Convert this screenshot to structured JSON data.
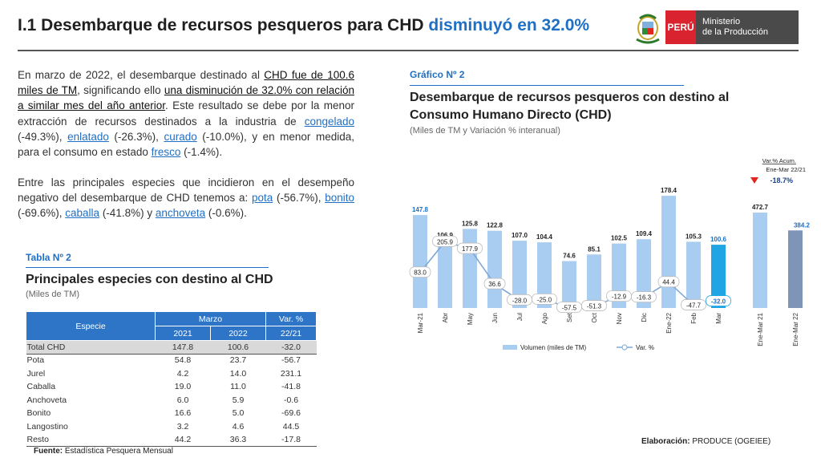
{
  "header": {
    "title_main": "I.1 Desembarque de recursos pesqueros para CHD",
    "title_highlight": "disminuyó en 32.0%",
    "logo_country": "PERÚ",
    "logo_ministry_line1": "Ministerio",
    "logo_ministry_line2": "de la Producción"
  },
  "text": {
    "p1": [
      {
        "t": "En marzo de 2022, el desembarque destinado al ",
        "s": ""
      },
      {
        "t": "CHD fue de 100.6 miles de TM",
        "s": "u"
      },
      {
        "t": ", significando ello ",
        "s": ""
      },
      {
        "t": "una disminución de 32.0% con relación a similar mes del año anterior",
        "s": "u"
      },
      {
        "t": ". Este resultado se debe por la menor extracción de recursos destinados a la industria de ",
        "s": ""
      },
      {
        "t": "congelado",
        "s": "blue"
      },
      {
        "t": " (-49.3%), ",
        "s": ""
      },
      {
        "t": "enlatado",
        "s": "blue"
      },
      {
        "t": " (-26.3%), ",
        "s": ""
      },
      {
        "t": "curado",
        "s": "blue"
      },
      {
        "t": " (-10.0%), y en menor medida, para el consumo en estado ",
        "s": ""
      },
      {
        "t": "fresco",
        "s": "blue"
      },
      {
        "t": " (-1.4%).",
        "s": ""
      }
    ],
    "p2": [
      {
        "t": "Entre las principales especies que incidieron en el desempeño negativo del desembarque de CHD tenemos a: ",
        "s": ""
      },
      {
        "t": "pota",
        "s": "blue"
      },
      {
        "t": " (-56.7%), ",
        "s": ""
      },
      {
        "t": "bonito",
        "s": "blue"
      },
      {
        "t": " (-69.6%), ",
        "s": ""
      },
      {
        "t": "caballa",
        "s": "blue"
      },
      {
        "t": " (-41.8%) y ",
        "s": ""
      },
      {
        "t": "anchoveta",
        "s": "blue"
      },
      {
        "t": " (-0.6%).",
        "s": ""
      }
    ]
  },
  "table": {
    "label": "Tabla Nº 2",
    "title": "Principales especies con destino al CHD",
    "subtitle": "(Miles de TM)",
    "col_species": "Especie",
    "col_month": "Marzo",
    "col_var": "Var. %",
    "col_y1": "2021",
    "col_y2": "2022",
    "col_var_period": "22/21",
    "rows": [
      {
        "especie": "Total CHD",
        "y2021": "147.8",
        "y2022": "100.6",
        "var": "-32.0",
        "total": true
      },
      {
        "especie": "Pota",
        "y2021": "54.8",
        "y2022": "23.7",
        "var": "-56.7"
      },
      {
        "especie": "Jurel",
        "y2021": "4.2",
        "y2022": "14.0",
        "var": "231.1"
      },
      {
        "especie": "Caballa",
        "y2021": "19.0",
        "y2022": "11.0",
        "var": "-41.8"
      },
      {
        "especie": "Anchoveta",
        "y2021": "6.0",
        "y2022": "5.9",
        "var": "-0.6"
      },
      {
        "especie": "Bonito",
        "y2021": "16.6",
        "y2022": "5.0",
        "var": "-69.6"
      },
      {
        "especie": "Langostino",
        "y2021": "3.2",
        "y2022": "4.6",
        "var": "44.5"
      },
      {
        "especie": "Resto",
        "y2021": "44.2",
        "y2022": "36.3",
        "var": "-17.8"
      }
    ],
    "source_label": "Fuente:",
    "source_text": "Estadística Pesquera Mensual"
  },
  "graph": {
    "label": "Gráfico Nº 2",
    "title_line1": "Desembarque de recursos pesqueros con destino al",
    "title_line2": "Consumo Humano Directo (CHD)",
    "subtitle": "(Miles de TM y Variación % interanual)",
    "elab_label": "Elaboración:",
    "elab_text": "PRODUCE (OGEIEE)"
  },
  "chart_data": {
    "type": "bar",
    "title": "Desembarque de recursos pesqueros con destino al Consumo Humano Directo (CHD)",
    "categories": [
      "Mar-21",
      "Abr",
      "May",
      "Jun",
      "Jul",
      "Ago",
      "Set",
      "Oct",
      "Nov",
      "Dic",
      "Ene-22",
      "Feb",
      "Mar"
    ],
    "series": [
      {
        "name": "Volumen (miles de TM)",
        "type": "bar",
        "values": [
          147.8,
          106.9,
          125.8,
          122.8,
          107.0,
          104.4,
          74.6,
          85.1,
          102.5,
          109.4,
          178.4,
          105.3,
          100.6
        ]
      },
      {
        "name": "Var. %",
        "type": "line",
        "values": [
          83.0,
          205.9,
          177.9,
          36.6,
          -28.0,
          -25.0,
          -57.5,
          -51.3,
          -12.9,
          -16.3,
          44.4,
          -47.7,
          -32.0
        ]
      }
    ],
    "accumulated": {
      "categories": [
        "Ene-Mar 21",
        "Ene-Mar 22"
      ],
      "values": [
        472.7,
        384.2
      ],
      "var_label_line1": "Var.% Acum.",
      "var_label_line2": "Ene-Mar 22/21",
      "var_value": "-18.7%"
    },
    "colors": {
      "bar": "#a9cdf0",
      "bar_highlight": "#1fa5e3",
      "acc_2021": "#a9cdf0",
      "acc_2022": "#7f95b8",
      "line": "#7fa7d6",
      "label_blue": "#1f6fc4",
      "down_arrow": "#e0271e"
    },
    "ylim_bar": [
      0,
      190
    ],
    "ylim_line": [
      -120,
      300
    ],
    "legend_position": "bottom"
  }
}
